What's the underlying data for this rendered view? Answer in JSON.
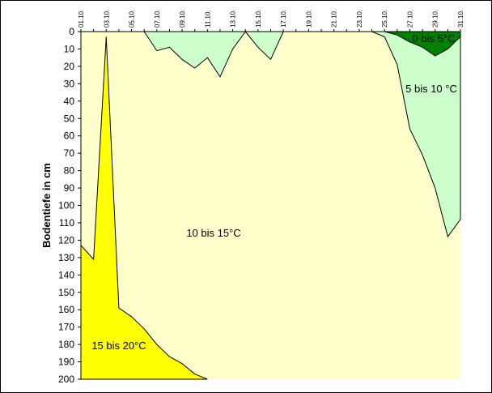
{
  "chart_data": {
    "type": "area",
    "title": "",
    "xlabel": "",
    "ylabel": "Bodentiefe in cm",
    "x_categories": [
      "01.10.",
      "02.10.",
      "03.10.",
      "04.10.",
      "05.10.",
      "06.10.",
      "07.10.",
      "08.10.",
      "09.10.",
      "10.10.",
      "11.10.",
      "12.10.",
      "13.10.",
      "14.10.",
      "15.10.",
      "16.10.",
      "17.10.",
      "18.10.",
      "19.10.",
      "20.10.",
      "21.10.",
      "22.10.",
      "23.10.",
      "24.10.",
      "25.10.",
      "26.10.",
      "27.10.",
      "28.10.",
      "29.10.",
      "30.10.",
      "31.10."
    ],
    "x_tick_labels": [
      "01.10.",
      "03.10.",
      "05.10.",
      "07.10.",
      "09.10.",
      "11.10.",
      "13.10.",
      "15.10.",
      "17.10.",
      "19.10.",
      "21.10.",
      "23.10.",
      "25.10.",
      "27.10.",
      "29.10.",
      "31.10."
    ],
    "ylim": [
      0,
      200
    ],
    "y_inverted": true,
    "y_ticks": [
      0,
      10,
      20,
      30,
      40,
      50,
      60,
      70,
      80,
      90,
      100,
      110,
      120,
      130,
      140,
      150,
      160,
      170,
      180,
      190,
      200
    ],
    "background_region": {
      "name": "10 bis 15°C",
      "color": "#ffffcc"
    },
    "series": [
      {
        "name": "15 bis 20°C",
        "color": "#ffff00",
        "description": "depth (cm) of upper boundary of the 15–20°C zone; zone extends down to 200 cm",
        "boundary": [
          {
            "x": "01.10.",
            "y": 123
          },
          {
            "x": "02.10.",
            "y": 131
          },
          {
            "x": "03.10.",
            "y": 3
          },
          {
            "x": "04.10.",
            "y": 159
          },
          {
            "x": "05.10.",
            "y": 164
          },
          {
            "x": "06.10.",
            "y": 171
          },
          {
            "x": "07.10.",
            "y": 180
          },
          {
            "x": "08.10.",
            "y": 187
          },
          {
            "x": "09.10.",
            "y": 191
          },
          {
            "x": "10.10.",
            "y": 197
          },
          {
            "x": "11.10.",
            "y": 200
          }
        ]
      },
      {
        "name": "5 bis 10 °C",
        "color": "#ccffcc",
        "description": "depth (cm) of lower boundary of the 5–10°C zone; zone extends up to 0 cm",
        "segments": [
          [
            {
              "x": "06.10.",
              "y": 0
            },
            {
              "x": "07.10.",
              "y": 11
            },
            {
              "x": "08.10.",
              "y": 9
            },
            {
              "x": "09.10.",
              "y": 16
            },
            {
              "x": "10.10.",
              "y": 21
            },
            {
              "x": "11.10.",
              "y": 15
            },
            {
              "x": "12.10.",
              "y": 26
            },
            {
              "x": "13.10.",
              "y": 10
            },
            {
              "x": "14.10.",
              "y": 0
            }
          ],
          [
            {
              "x": "14.10.",
              "y": 0
            },
            {
              "x": "15.10.",
              "y": 9
            },
            {
              "x": "16.10.",
              "y": 16
            },
            {
              "x": "17.10.",
              "y": 0
            }
          ],
          [
            {
              "x": "24.10.",
              "y": 0
            },
            {
              "x": "25.10.",
              "y": 3
            },
            {
              "x": "26.10.",
              "y": 19
            },
            {
              "x": "27.10.",
              "y": 56
            },
            {
              "x": "28.10.",
              "y": 71
            },
            {
              "x": "29.10.",
              "y": 90
            },
            {
              "x": "30.10.",
              "y": 118
            },
            {
              "x": "31.10.",
              "y": 108
            }
          ]
        ]
      },
      {
        "name": "0 bis 5°C",
        "color": "#008000",
        "description": "depth (cm) of lower boundary of the 0–5°C zone; zone extends up to 0 cm",
        "segments": [
          [
            {
              "x": "25.10.",
              "y": 0
            },
            {
              "x": "26.10.",
              "y": 2
            },
            {
              "x": "27.10.",
              "y": 6
            },
            {
              "x": "28.10.",
              "y": 9
            },
            {
              "x": "29.10.",
              "y": 14
            },
            {
              "x": "30.10.",
              "y": 10
            },
            {
              "x": "31.10.",
              "y": 3
            }
          ]
        ]
      }
    ],
    "grid": false,
    "legend": "none (labels placed inside regions)"
  }
}
